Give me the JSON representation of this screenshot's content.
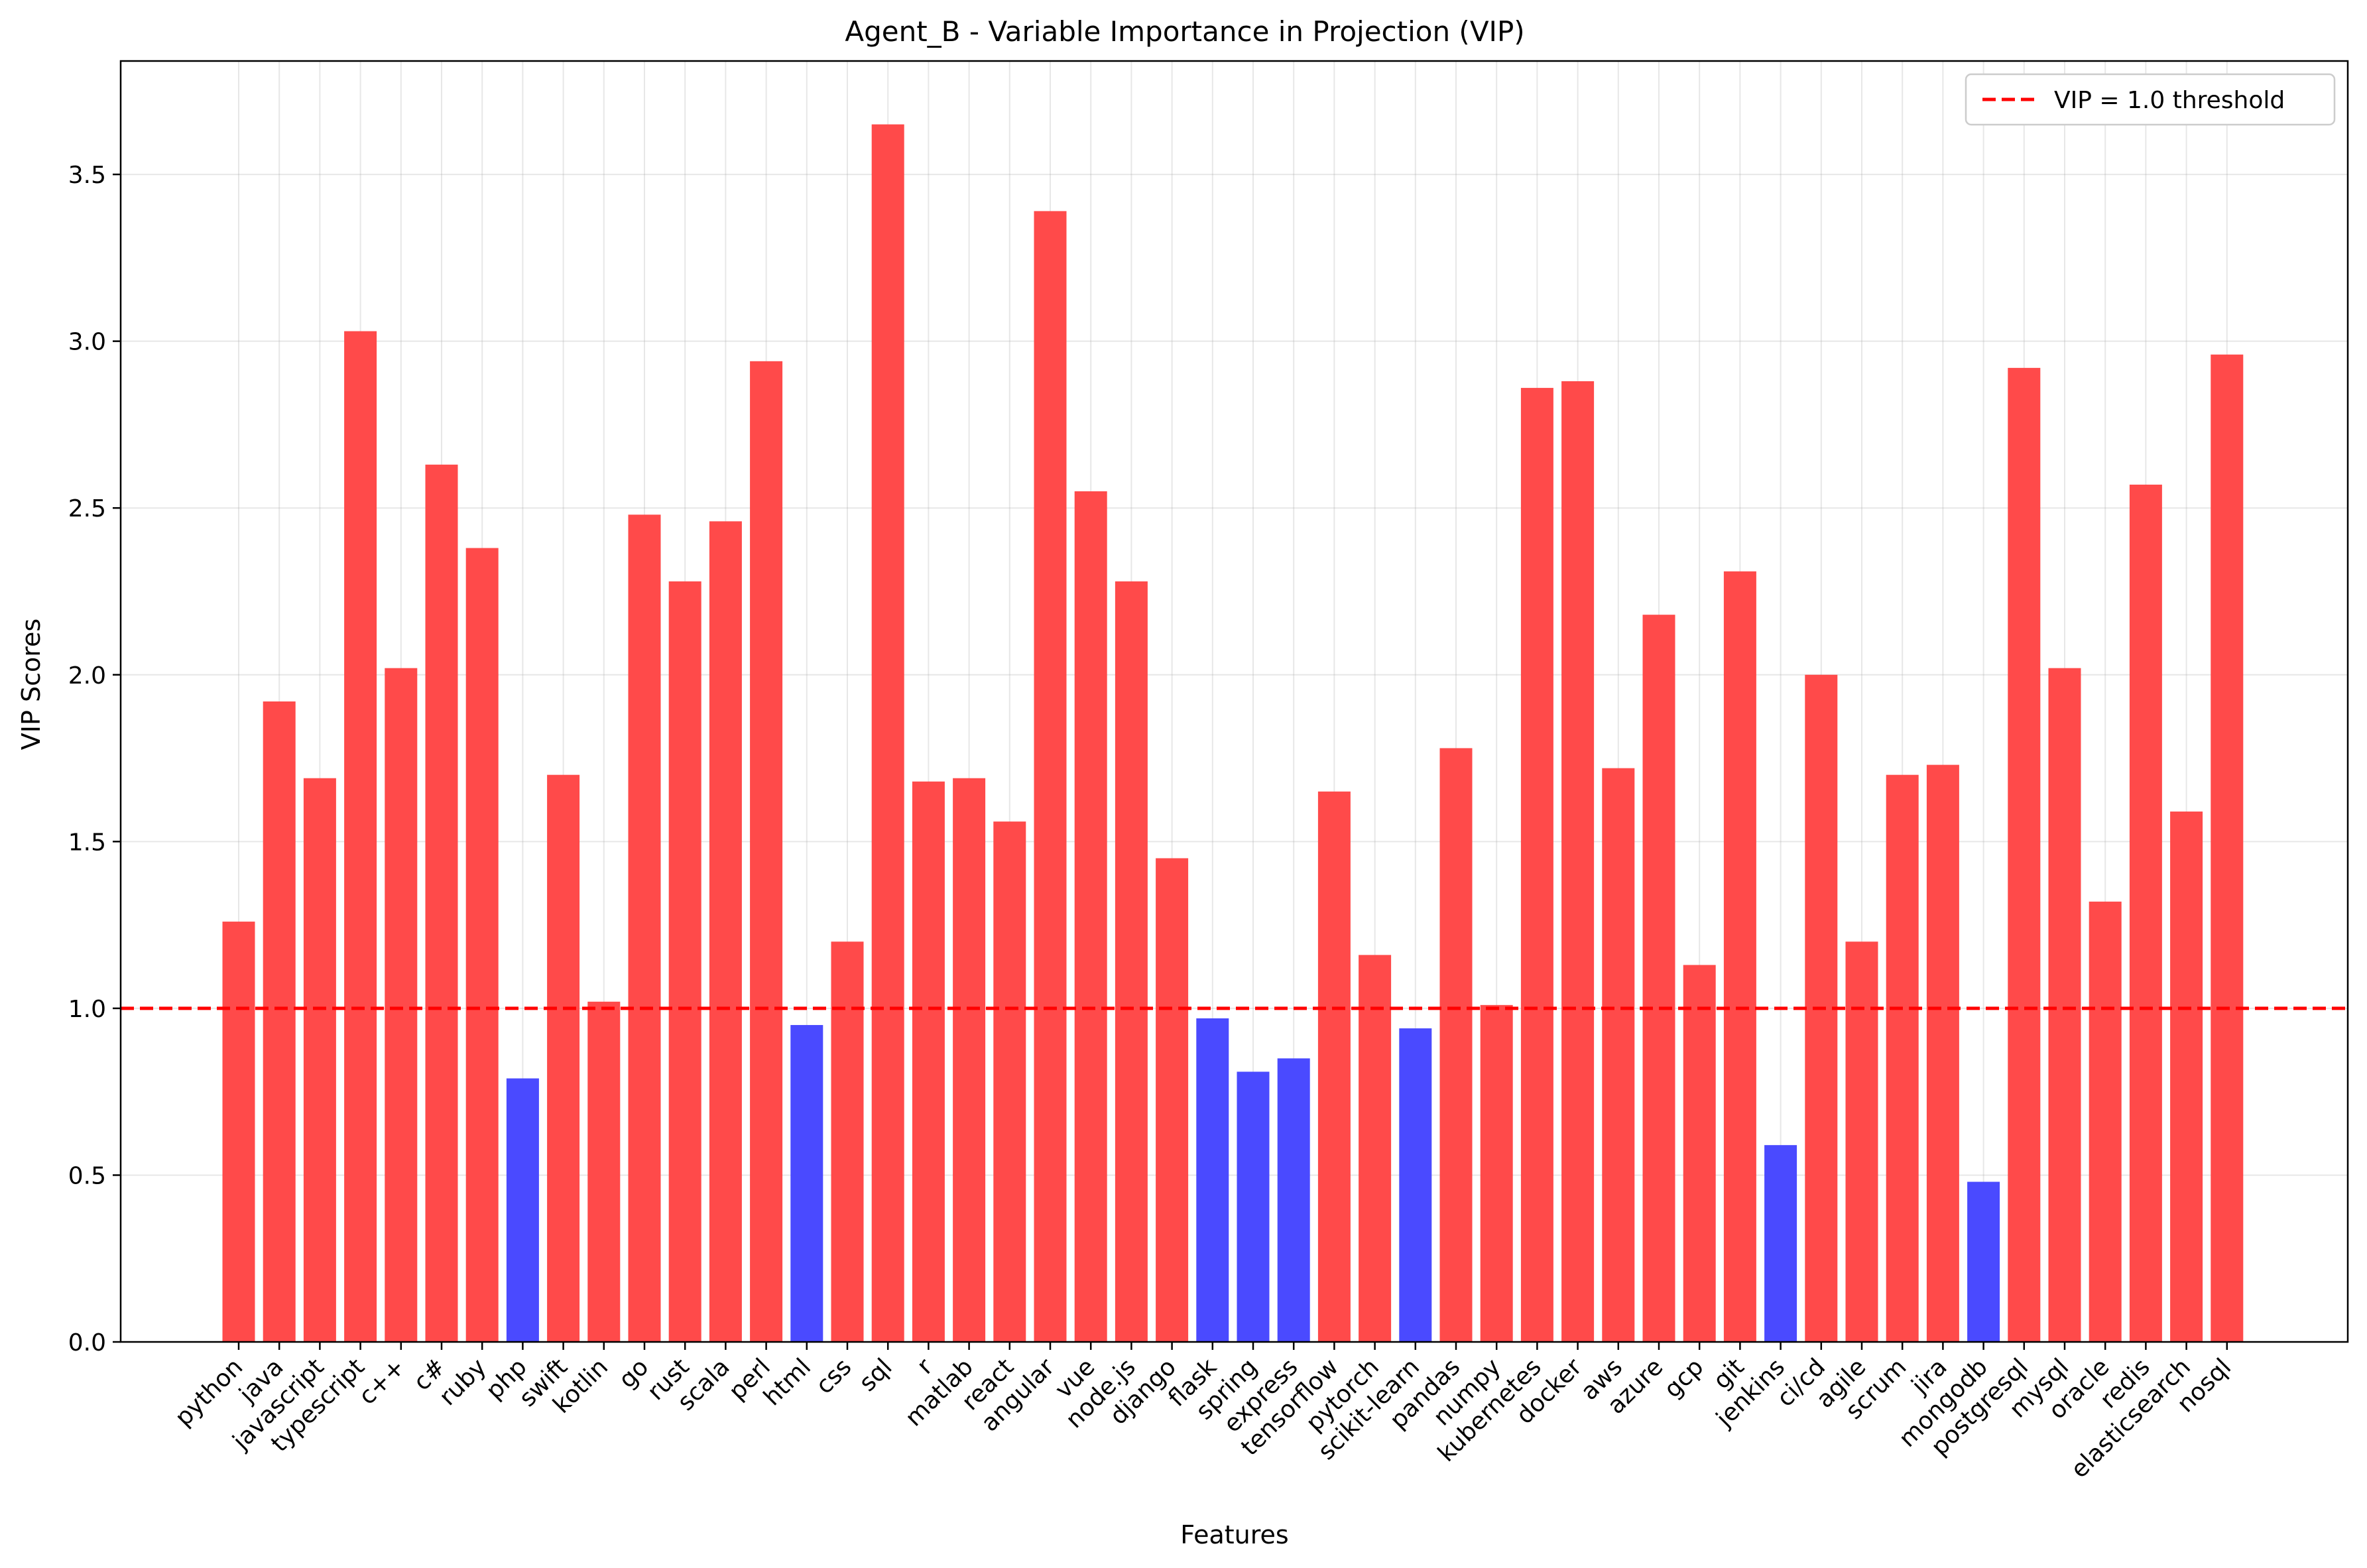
{
  "chart_data": {
    "type": "bar",
    "title": "Agent_B - Variable Importance in Projection (VIP)",
    "xlabel": "Features",
    "ylabel": "VIP Scores",
    "ylim": [
      0,
      3.84
    ],
    "yticks": [
      "0.0",
      "0.5",
      "1.0",
      "1.5",
      "2.0",
      "2.5",
      "3.0",
      "3.5"
    ],
    "grid": true,
    "threshold": {
      "value": 1.0,
      "label": "VIP = 1.0 threshold",
      "color": "#ff0000",
      "style": "dashed"
    },
    "legend_position": "top-right",
    "colors": {
      "above": "#ff4a4a",
      "below": "#4a4aff"
    },
    "categories": [
      "python",
      "java",
      "javascript",
      "typescript",
      "c++",
      "c#",
      "ruby",
      "php",
      "swift",
      "kotlin",
      "go",
      "rust",
      "scala",
      "perl",
      "html",
      "css",
      "sql",
      "r",
      "matlab",
      "react",
      "angular",
      "vue",
      "node.js",
      "django",
      "flask",
      "spring",
      "express",
      "tensorflow",
      "pytorch",
      "scikit-learn",
      "pandas",
      "numpy",
      "kubernetes",
      "docker",
      "aws",
      "azure",
      "gcp",
      "git",
      "jenkins",
      "ci/cd",
      "agile",
      "scrum",
      "jira",
      "mongodb",
      "postgresql",
      "mysql",
      "oracle",
      "redis",
      "elasticsearch",
      "nosql"
    ],
    "values": [
      1.26,
      1.92,
      1.69,
      3.03,
      2.02,
      2.63,
      2.38,
      0.79,
      1.7,
      1.02,
      2.48,
      2.28,
      2.46,
      2.94,
      0.95,
      1.2,
      3.65,
      1.68,
      1.69,
      1.56,
      3.39,
      2.55,
      2.28,
      1.45,
      0.97,
      0.81,
      0.85,
      1.65,
      1.16,
      0.94,
      1.78,
      1.01,
      2.86,
      2.88,
      1.72,
      2.18,
      1.13,
      2.31,
      0.59,
      2.0,
      1.2,
      1.7,
      1.73,
      0.48,
      2.92,
      2.02,
      1.32,
      2.57,
      1.59,
      2.96
    ]
  }
}
